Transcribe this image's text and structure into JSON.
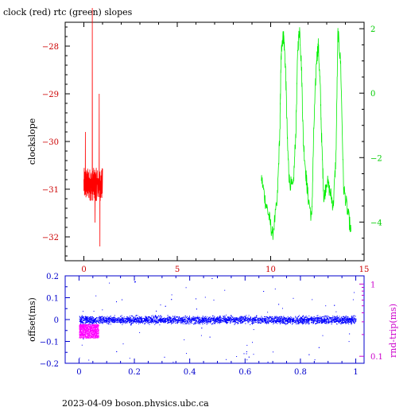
{
  "title": "clock (red) rtc (green) slopes",
  "footer": "2023-04-09  boson.physics.ubc.ca",
  "colors": {
    "clock": "#ff0000",
    "rtc": "#00ee00",
    "offset": "#0000ff",
    "roundtrip": "#ff00ff",
    "frame": "#000000",
    "left_axis_top": "#cc0000",
    "right_axis_top": "#00cc00",
    "axis_bottom_left": "#0000cc",
    "axis_bottom_right": "#cc00cc"
  },
  "chart_data": [
    {
      "type": "line",
      "title": "clock (red) rtc (green) slopes",
      "xlim": [
        -1,
        15
      ],
      "x_ticks": [
        0,
        5,
        10,
        15
      ],
      "ylabel": "clockslope",
      "ylim": [
        -32.5,
        -27.5
      ],
      "y_ticks": [
        -28,
        -29,
        -30,
        -31,
        -32
      ],
      "y2lim": [
        -5.2,
        2.2
      ],
      "y2_ticks": [
        2,
        0,
        -2,
        -4
      ],
      "grid": false,
      "series": [
        {
          "name": "clock (red)",
          "axis": "left",
          "x_start": 0.0,
          "x_end": 1.0,
          "n_points": 180,
          "base": -30.9,
          "jitter": 0.35,
          "spikes": [
            {
              "x": 0.45,
              "y": -27.2
            },
            {
              "x": 0.82,
              "y": -29.0
            },
            {
              "x": 0.08,
              "y": -29.8
            },
            {
              "x": 0.86,
              "y": -32.2
            },
            {
              "x": 0.6,
              "y": -31.7
            }
          ]
        },
        {
          "name": "rtc (green)",
          "axis": "right",
          "x": [
            9.5,
            9.7,
            9.9,
            10.1,
            10.35,
            10.5,
            10.55,
            10.6,
            10.7,
            10.8,
            10.9,
            11.0,
            11.2,
            11.35,
            11.45,
            11.55,
            11.65,
            11.75,
            11.9,
            12.0,
            12.2,
            12.3,
            12.45,
            12.55,
            12.65,
            12.75,
            12.85,
            13.0,
            13.2,
            13.35,
            13.5,
            13.6,
            13.75,
            13.9,
            14.1,
            14.3
          ],
          "y": [
            -2.6,
            -3.3,
            -3.8,
            -4.4,
            -3.4,
            -1.0,
            0.9,
            1.6,
            1.8,
            0.7,
            -1.6,
            -2.7,
            -3.0,
            -1.2,
            1.4,
            2.0,
            0.8,
            -1.5,
            -2.6,
            -3.2,
            -3.9,
            -1.3,
            1.0,
            1.5,
            0.2,
            -1.8,
            -3.3,
            -2.7,
            -3.1,
            -3.5,
            -1.9,
            1.9,
            0.9,
            -2.9,
            -3.6,
            -4.3
          ],
          "jitter": 0.25
        }
      ]
    },
    {
      "type": "scatter",
      "xlim": [
        -0.05,
        1.03
      ],
      "x_ticks": [
        0,
        0.2,
        0.4,
        0.6,
        0.8,
        1
      ],
      "x_tick_labels": [
        "0",
        "0.2",
        "0.4",
        "0.6",
        "0.8",
        "1"
      ],
      "ylabel": "offset(ms)",
      "ylim": [
        -0.2,
        0.2
      ],
      "y_ticks": [
        0.2,
        0.1,
        0,
        -0.1,
        -0.2
      ],
      "y2label": "rnd-trip(ms)",
      "y2_scale": "log",
      "y2lim": [
        0.08,
        1.3
      ],
      "y2_ticks": [
        1,
        0.1
      ],
      "grid": false,
      "series": [
        {
          "name": "offset",
          "axis": "left",
          "x_range": [
            0,
            1
          ],
          "n_points": 4500,
          "center": 0,
          "spread": 0.012,
          "outlier_fraction": 0.02,
          "outlier_range": [
            -0.2,
            0.2
          ]
        },
        {
          "name": "rnd-trip",
          "axis": "right",
          "x_range": [
            0.0,
            0.07
          ],
          "n_points": 900,
          "y_range": [
            0.18,
            0.28
          ]
        }
      ]
    }
  ]
}
